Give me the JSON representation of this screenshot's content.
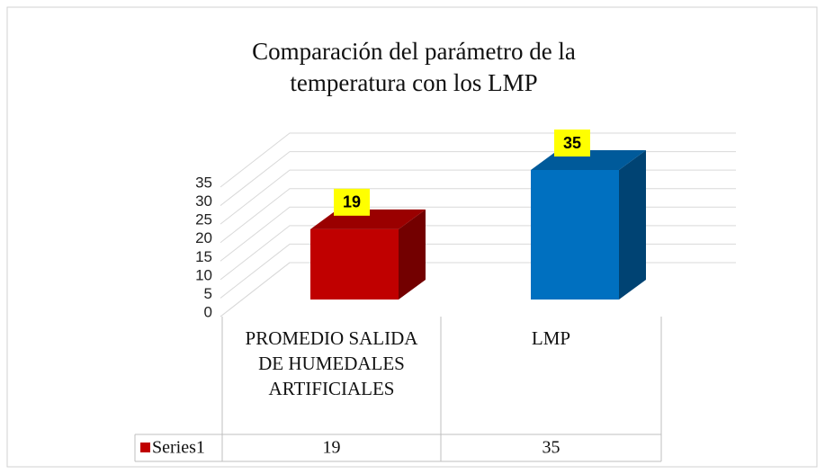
{
  "chart_data": {
    "type": "bar3d",
    "title": "Comparación del parámetro de la temperatura con los LMP",
    "categories": [
      "PROMEDIO SALIDA DE HUMEDALES ARTIFICIALES",
      "LMP"
    ],
    "series": [
      {
        "name": "Series1",
        "colors": [
          "#C00000",
          "#0070C0"
        ],
        "values": [
          19,
          35
        ]
      }
    ],
    "ylim": [
      0,
      35
    ],
    "yticks": [
      0,
      5,
      10,
      15,
      20,
      25,
      30,
      35
    ],
    "grid": true,
    "data_table": true
  }
}
